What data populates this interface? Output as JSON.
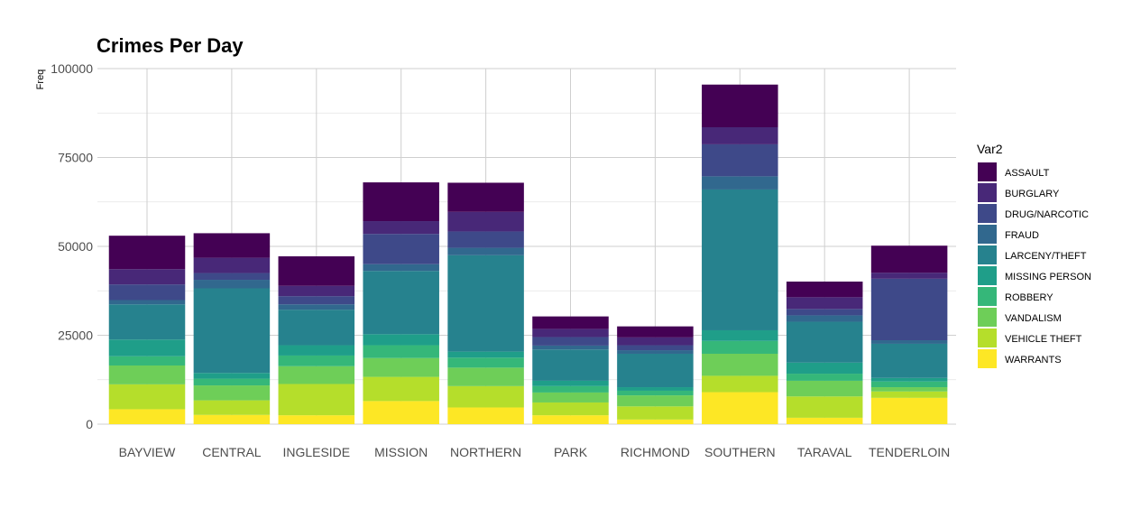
{
  "chart_data": {
    "type": "bar",
    "stacked": true,
    "title": "Crimes Per Day",
    "xlabel": "",
    "ylabel": "Freq",
    "ylim": [
      0,
      100000
    ],
    "yticks": [
      0,
      25000,
      50000,
      75000,
      100000
    ],
    "grid": true,
    "legend": {
      "title": "Var2",
      "position": "right"
    },
    "categories": [
      "BAYVIEW",
      "CENTRAL",
      "INGLESIDE",
      "MISSION",
      "NORTHERN",
      "PARK",
      "RICHMOND",
      "SOUTHERN",
      "TARAVAL",
      "TENDERLOIN"
    ],
    "series": [
      {
        "name": "WARRANTS",
        "color": "#fde725",
        "values": [
          4200,
          2600,
          2500,
          6500,
          4700,
          2500,
          1300,
          9000,
          1800,
          7400
        ]
      },
      {
        "name": "VEHICLE THEFT",
        "color": "#b5de2b",
        "values": [
          7000,
          4100,
          8800,
          6800,
          6000,
          3600,
          3700,
          4600,
          6000,
          1800
        ]
      },
      {
        "name": "VANDALISM",
        "color": "#6ece58",
        "values": [
          5300,
          4200,
          5000,
          5300,
          5200,
          2800,
          3100,
          6200,
          4400,
          1200
        ]
      },
      {
        "name": "ROBBERY",
        "color": "#35b779",
        "values": [
          2600,
          1900,
          3000,
          3600,
          2800,
          1800,
          1300,
          3600,
          2000,
          1600
        ]
      },
      {
        "name": "MISSING PERSON",
        "color": "#1f9e89",
        "values": [
          4700,
          1600,
          2900,
          3100,
          1700,
          1500,
          1000,
          3000,
          3100,
          1000
        ]
      },
      {
        "name": "LARCENY/THEFT",
        "color": "#26828e",
        "values": [
          9900,
          23800,
          10000,
          17800,
          27100,
          8800,
          9400,
          39600,
          11500,
          9600
        ]
      },
      {
        "name": "FRAUD",
        "color": "#31688e",
        "values": [
          1200,
          2400,
          1500,
          1900,
          2100,
          1100,
          1000,
          3700,
          1800,
          1000
        ]
      },
      {
        "name": "DRUG/NARCOTIC",
        "color": "#3e4989",
        "values": [
          4400,
          1900,
          2300,
          8500,
          4600,
          2400,
          1400,
          9000,
          1800,
          17300
        ]
      },
      {
        "name": "BURGLARY",
        "color": "#482878",
        "values": [
          4300,
          4300,
          2900,
          3600,
          5500,
          2300,
          2200,
          4800,
          3300,
          1700
        ]
      },
      {
        "name": "ASSAULT",
        "color": "#440154",
        "values": [
          9400,
          6900,
          8300,
          10900,
          8200,
          3500,
          3100,
          12000,
          4400,
          7600
        ]
      }
    ]
  }
}
